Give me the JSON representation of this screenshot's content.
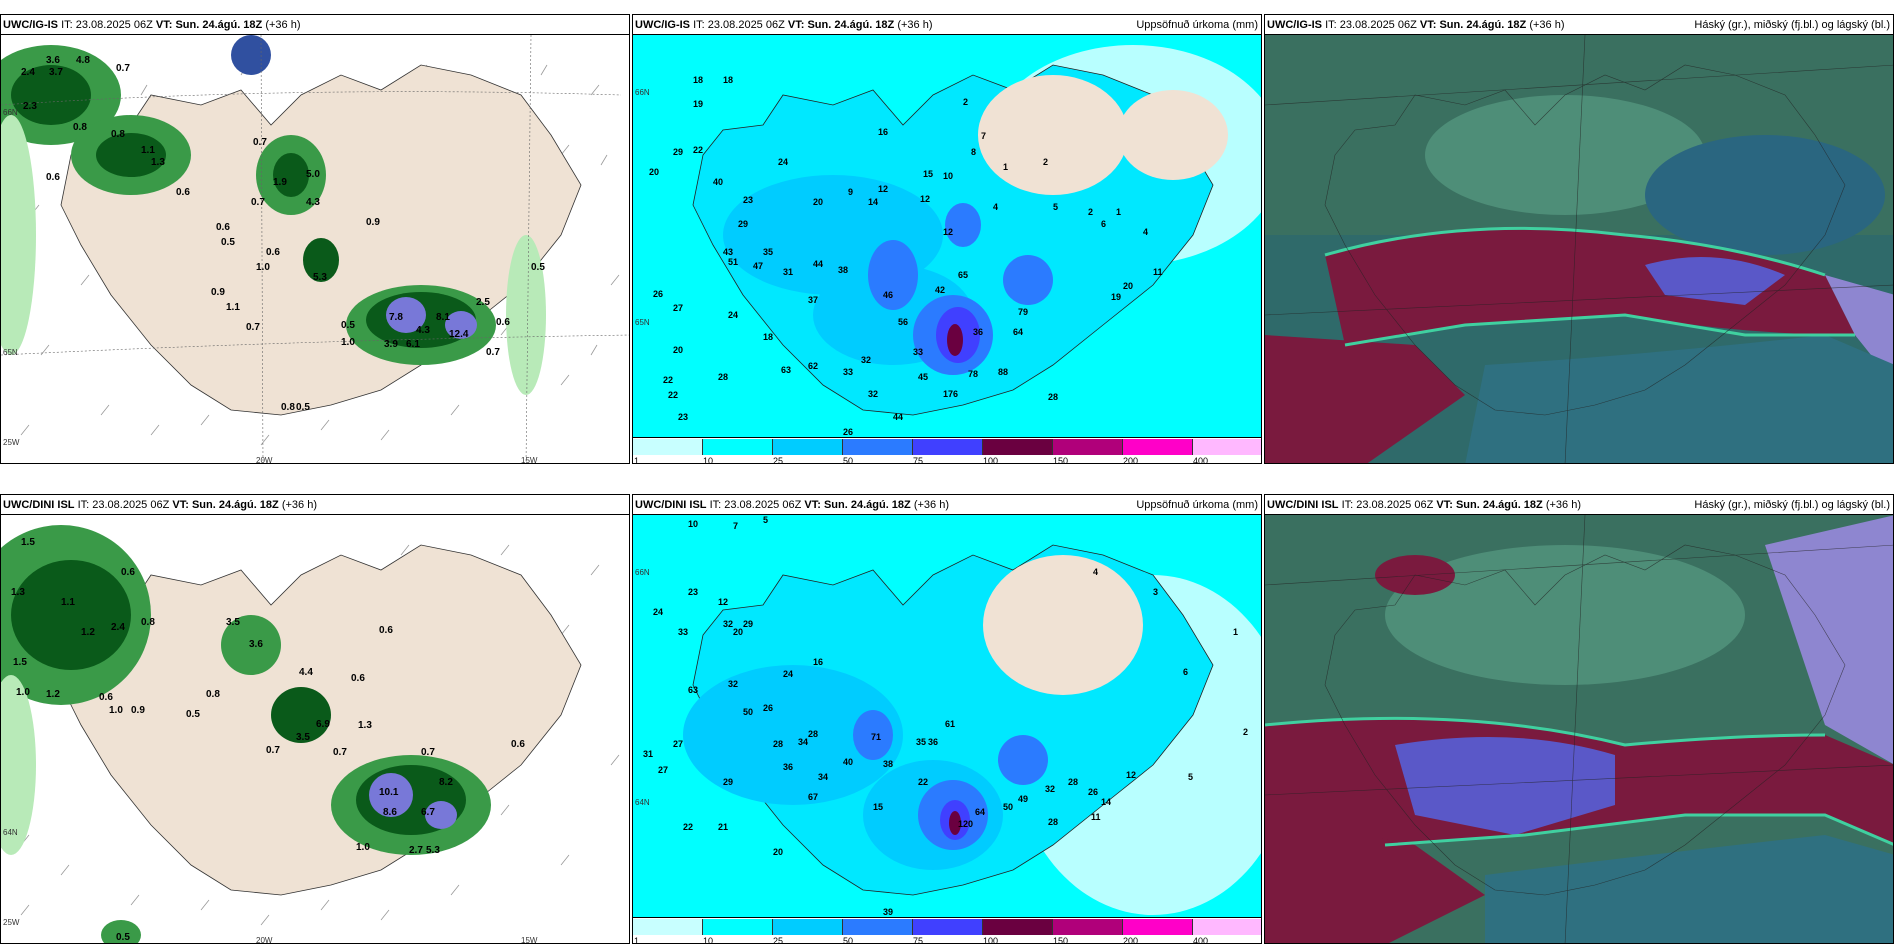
{
  "panels": {
    "p1": {
      "model": "UWC/IG-IS",
      "it_label": "IT:",
      "it": "23.08.2025 06Z",
      "vt_label": "VT:",
      "vt": "Sun. 24.ágú. 18Z",
      "lead": "(+36 h)",
      "right_title": ""
    },
    "p2": {
      "model": "UWC/IG-IS",
      "it_label": "IT:",
      "it": "23.08.2025 06Z",
      "vt_label": "VT:",
      "vt": "Sun. 24.ágú. 18Z",
      "lead": "(+36 h)",
      "right_title": "Uppsöfnuð úrkoma (mm)"
    },
    "p3": {
      "model": "UWC/IG-IS",
      "it_label": "IT:",
      "it": "23.08.2025 06Z",
      "vt_label": "VT:",
      "vt": "Sun. 24.ágú. 18Z",
      "lead": "(+36 h)",
      "right_title": "Háský (gr.), miðský (fj.bl.) og lágský (bl.)"
    },
    "p4": {
      "model": "UWC/DINI ISL",
      "it_label": "IT:",
      "it": "23.08.2025 06Z",
      "vt_label": "VT:",
      "vt": "Sun. 24.ágú. 18Z",
      "lead": "(+36 h)",
      "right_title": ""
    },
    "p5": {
      "model": "UWC/DINI ISL",
      "it_label": "IT:",
      "it": "23.08.2025 06Z",
      "vt_label": "VT:",
      "vt": "Sun. 24.ágú. 18Z",
      "lead": "(+36 h)",
      "right_title": "Uppsöfnuð úrkoma (mm)"
    },
    "p6": {
      "model": "UWC/DINI ISL",
      "it_label": "IT:",
      "it": "23.08.2025 06Z",
      "vt_label": "VT:",
      "vt": "Sun. 24.ágú. 18Z",
      "lead": "(+36 h)",
      "right_title": "Háský (gr.), miðský (fj.bl.) og lágský (bl.)"
    }
  },
  "map_labels": {
    "lon_20w": "20W",
    "lon_15w": "15W",
    "lon_25w": "25W",
    "lat_65n": "65N",
    "lat_64n": "64N",
    "lat_66n": "66N"
  },
  "colorbar": {
    "labels": [
      "1",
      "10",
      "25",
      "50",
      "75",
      "100",
      "150",
      "200",
      "400"
    ],
    "colors": [
      "#c8ffff",
      "#00ffff",
      "#00ccff",
      "#2b7bff",
      "#4040ff",
      "#6a0040",
      "#b0007a",
      "#ff00c8",
      "#ffb8ff"
    ]
  },
  "precip_values": {
    "p1": [
      "2.4",
      "3.6",
      "4.8",
      "3.7",
      "2.3",
      "0.7",
      "0.8",
      "0.6",
      "0.7",
      "1.1",
      "0.8",
      "1.3",
      "1.9",
      "5.0",
      "4.3",
      "0.6",
      "0.7",
      "0.6",
      "0.5",
      "0.6",
      "0.9",
      "1.0",
      "0.9",
      "5.3",
      "1.1",
      "0.7",
      "1.0",
      "0.5",
      "7.8",
      "8.1",
      "4.3",
      "6.1",
      "3.9",
      "12.4",
      "2.5",
      "0.7",
      "0.6",
      "0.5",
      "0.8",
      "0.5"
    ],
    "p4": [
      "1.5",
      "1.3",
      "1.1",
      "0.8",
      "0.6",
      "1.2",
      "2.4",
      "3.5",
      "3.6",
      "1.5",
      "1.0",
      "1.2",
      "0.9",
      "1.0",
      "0.6",
      "4.4",
      "0.6",
      "0.8",
      "0.5",
      "6.9",
      "3.5",
      "0.7",
      "1.3",
      "0.7",
      "10.1",
      "8.2",
      "8.6",
      "6.7",
      "2.7",
      "5.3",
      "0.6",
      "0.7",
      "1.0",
      "0.6",
      "0.5"
    ],
    "p2": [
      "18",
      "19",
      "20",
      "29",
      "22",
      "40",
      "23",
      "24",
      "29",
      "20",
      "18",
      "16",
      "14",
      "12",
      "10",
      "15",
      "9",
      "12",
      "2",
      "7",
      "8",
      "1",
      "2",
      "4",
      "5",
      "2",
      "1",
      "6",
      "4",
      "11",
      "43",
      "35",
      "51",
      "47",
      "31",
      "44",
      "38",
      "46",
      "65",
      "42",
      "12",
      "26",
      "27",
      "20",
      "22",
      "22",
      "23",
      "28",
      "24",
      "18",
      "37",
      "63",
      "62",
      "33",
      "32",
      "56",
      "36",
      "79",
      "64",
      "88",
      "78",
      "45",
      "176",
      "28",
      "19",
      "20",
      "44",
      "26",
      "32",
      "33"
    ],
    "p5": [
      "10",
      "7",
      "5",
      "23",
      "24",
      "12",
      "33",
      "20",
      "32",
      "29",
      "16",
      "24",
      "63",
      "32",
      "34",
      "50",
      "26",
      "28",
      "28",
      "36",
      "31",
      "27",
      "27",
      "29",
      "22",
      "21",
      "20",
      "39",
      "15",
      "71",
      "67",
      "34",
      "40",
      "38",
      "35",
      "61",
      "36",
      "49",
      "50",
      "64",
      "22",
      "28",
      "26",
      "28",
      "32",
      "120",
      "14",
      "11",
      "12",
      "5",
      "2",
      "1",
      "4",
      "3",
      "6"
    ]
  },
  "cloud_legend": {
    "high": "gr.",
    "mid": "fj.bl.",
    "low": "bl."
  }
}
